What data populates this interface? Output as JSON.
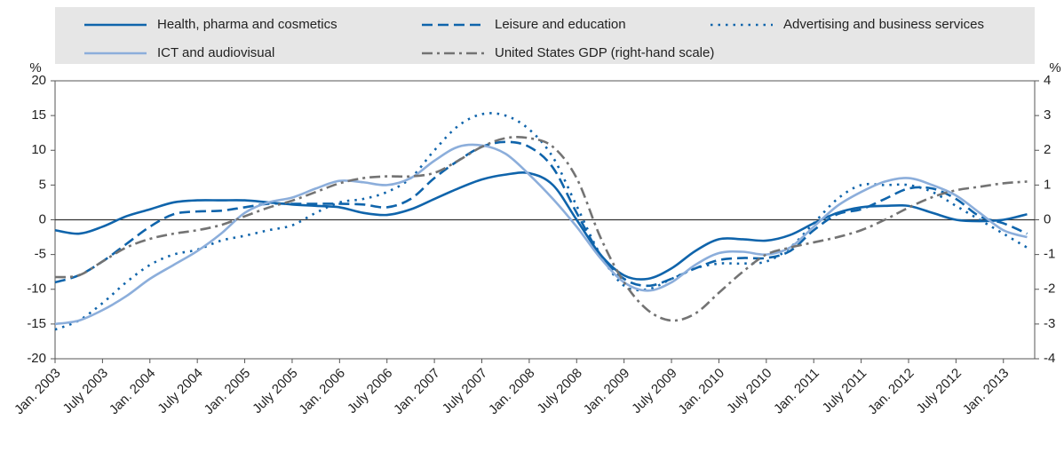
{
  "chart_data": {
    "type": "line",
    "y_unit": "%",
    "y2_unit": "%",
    "x": [
      2003,
      2003.25,
      2003.5,
      2003.75,
      2004,
      2004.25,
      2004.5,
      2004.75,
      2005,
      2005.25,
      2005.5,
      2005.75,
      2006,
      2006.25,
      2006.5,
      2006.75,
      2007,
      2007.25,
      2007.5,
      2007.75,
      2008,
      2008.25,
      2008.5,
      2008.75,
      2009,
      2009.25,
      2009.5,
      2009.75,
      2010,
      2010.25,
      2010.5,
      2010.75,
      2011,
      2011.25,
      2011.5,
      2011.75,
      2012,
      2012.25,
      2012.5,
      2012.75,
      2013,
      2013.25
    ],
    "xlim": [
      2003,
      2013.33
    ],
    "xticks": [
      {
        "value": 2003,
        "label": "Jan. 2003"
      },
      {
        "value": 2003.5,
        "label": "July 2003"
      },
      {
        "value": 2004,
        "label": "Jan. 2004"
      },
      {
        "value": 2004.5,
        "label": "July 2004"
      },
      {
        "value": 2005,
        "label": "Jan. 2005"
      },
      {
        "value": 2005.5,
        "label": "July 2005"
      },
      {
        "value": 2006,
        "label": "Jan. 2006"
      },
      {
        "value": 2006.5,
        "label": "July 2006"
      },
      {
        "value": 2007,
        "label": "Jan. 2007"
      },
      {
        "value": 2007.5,
        "label": "July 2007"
      },
      {
        "value": 2008,
        "label": "Jan. 2008"
      },
      {
        "value": 2008.5,
        "label": "July 2008"
      },
      {
        "value": 2009,
        "label": "Jan. 2009"
      },
      {
        "value": 2009.5,
        "label": "July 2009"
      },
      {
        "value": 2010,
        "label": "Jan. 2010"
      },
      {
        "value": 2010.5,
        "label": "July 2010"
      },
      {
        "value": 2011,
        "label": "Jan. 2011"
      },
      {
        "value": 2011.5,
        "label": "July 2011"
      },
      {
        "value": 2012,
        "label": "Jan. 2012"
      },
      {
        "value": 2012.5,
        "label": "July 2012"
      },
      {
        "value": 2013,
        "label": "Jan. 2013"
      }
    ],
    "ylim": [
      -20,
      20
    ],
    "yticks": [
      -20,
      -15,
      -10,
      -5,
      0,
      5,
      10,
      15,
      20
    ],
    "y2lim": [
      -4,
      4
    ],
    "y2ticks": [
      -4,
      -3,
      -2,
      -1,
      0,
      1,
      2,
      3,
      4
    ],
    "series": [
      {
        "name": "Health, pharma and cosmetics",
        "color": "#0f64ab",
        "style": "solid",
        "values": [
          -1.5,
          -2,
          -1,
          0.5,
          1.5,
          2.5,
          2.8,
          2.8,
          2.8,
          2.5,
          2.2,
          2,
          1.8,
          1,
          0.7,
          1.5,
          3,
          4.5,
          5.8,
          6.5,
          6.7,
          5,
          0,
          -5,
          -8,
          -8.5,
          -7,
          -4.5,
          -2.8,
          -2.8,
          -3,
          -2.2,
          -0.5,
          1,
          1.8,
          2,
          2,
          1,
          0,
          -0.2,
          0,
          0.8
        ]
      },
      {
        "name": "Leisure and education",
        "color": "#0f64ab",
        "style": "dashed",
        "values": [
          -9,
          -8,
          -6,
          -3.5,
          -1,
          0.8,
          1.2,
          1.3,
          1.8,
          2.3,
          2.3,
          2.3,
          2.3,
          2.2,
          1.8,
          3,
          6,
          8.5,
          10.5,
          11.2,
          10.5,
          7.5,
          1,
          -5,
          -8.5,
          -9.5,
          -8.5,
          -7,
          -5.8,
          -5.5,
          -5.5,
          -4.5,
          -1.5,
          0.8,
          1.5,
          3,
          4.5,
          4.5,
          3,
          0.5,
          -0.5,
          -2
        ]
      },
      {
        "name": "Advertising and business services",
        "color": "#0f64ab",
        "style": "dotted",
        "values": [
          -15.8,
          -14.5,
          -12,
          -9,
          -6.5,
          -5,
          -4.3,
          -3,
          -2.3,
          -1.5,
          -0.8,
          1,
          2.5,
          3,
          4,
          6,
          10,
          13.5,
          15.2,
          15,
          13,
          9,
          2,
          -5,
          -9.5,
          -10,
          -8.5,
          -7,
          -6.3,
          -6.3,
          -6,
          -4,
          -0.5,
          3,
          5,
          5,
          5,
          4,
          2,
          0,
          -2,
          -4
        ]
      },
      {
        "name": "ICT and audiovisual",
        "color": "#8caedb",
        "style": "solid",
        "values": [
          -15,
          -14.5,
          -13,
          -11,
          -8.5,
          -6.5,
          -4.5,
          -2,
          1,
          2.5,
          3.2,
          4.5,
          5.6,
          5.4,
          5,
          6,
          8.5,
          10.5,
          10.7,
          9.5,
          6.5,
          3,
          -1,
          -5.5,
          -9,
          -10.2,
          -9,
          -6.5,
          -4.8,
          -4.6,
          -5,
          -4,
          -1,
          2,
          4,
          5.5,
          6,
          5,
          3.5,
          1,
          -1.5,
          -2.5
        ]
      },
      {
        "name": "United States GDP (right-hand scale)",
        "color": "#737373",
        "style": "dashdot",
        "axis": "y2",
        "values": [
          -1.65,
          -1.6,
          -1.2,
          -0.8,
          -0.55,
          -0.4,
          -0.3,
          -0.15,
          0.1,
          0.35,
          0.55,
          0.8,
          1.05,
          1.2,
          1.25,
          1.25,
          1.35,
          1.7,
          2.1,
          2.35,
          2.35,
          2.1,
          1.2,
          -0.5,
          -1.8,
          -2.6,
          -2.9,
          -2.7,
          -2.1,
          -1.5,
          -1,
          -0.8,
          -0.65,
          -0.5,
          -0.3,
          0,
          0.35,
          0.65,
          0.85,
          0.95,
          1.05,
          1.1
        ]
      }
    ]
  }
}
